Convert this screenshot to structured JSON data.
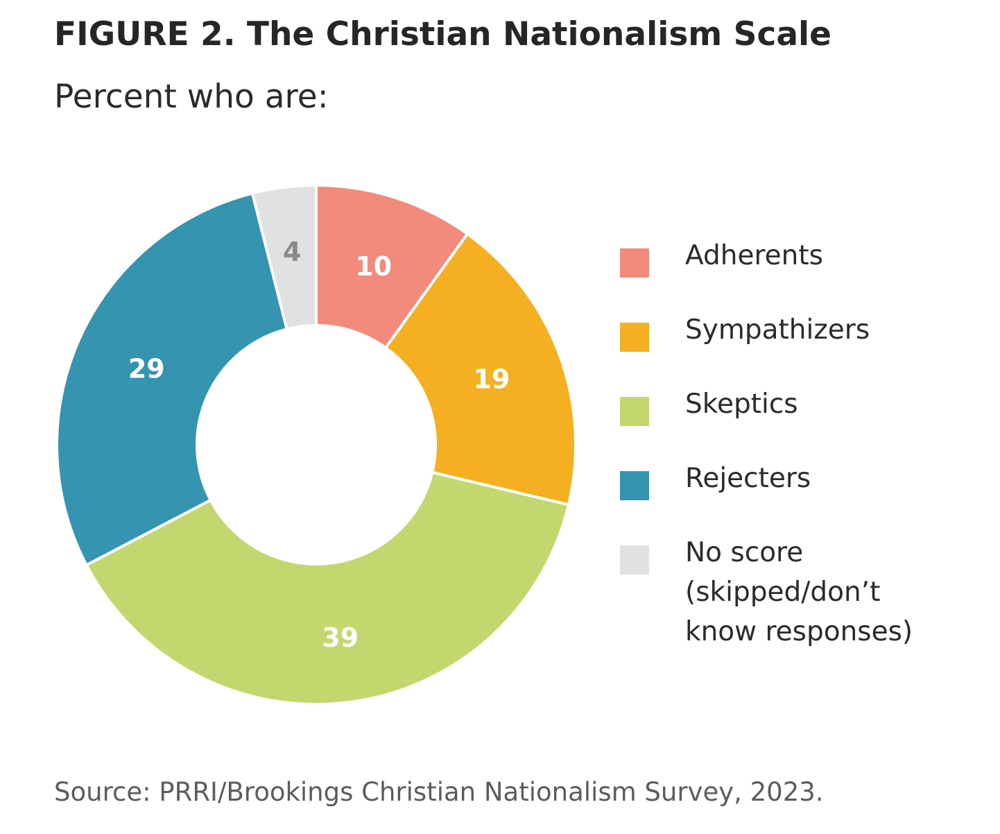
{
  "figure": {
    "title": "FIGURE 2.  The Christian Nationalism Scale",
    "subtitle": "Percent who are:",
    "source": "Source: PRRI/Brookings Christian Nationalism Survey, 2023."
  },
  "chart_data": {
    "type": "pie",
    "style": "donut",
    "title": "FIGURE 2.  The Christian Nationalism Scale",
    "subtitle": "Percent who are:",
    "legend_position": "right",
    "slices": [
      {
        "name": "Adherents",
        "value": 10,
        "label": "10",
        "color": "#f28b7b",
        "label_color": "#ffffff"
      },
      {
        "name": "Sympathizers",
        "value": 19,
        "label": "19",
        "color": "#f5b021",
        "label_color": "#ffffff"
      },
      {
        "name": "Skeptics",
        "value": 39,
        "label": "39",
        "color": "#c2d76e",
        "label_color": "#ffffff"
      },
      {
        "name": "Rejecters",
        "value": 29,
        "label": "29",
        "color": "#3594b0",
        "label_color": "#ffffff"
      },
      {
        "name": "No score",
        "value": 4,
        "label": "4",
        "color": "#e0e1e1",
        "label_color": "#8a8a8a"
      }
    ]
  },
  "legend": {
    "items": [
      {
        "lines": [
          "Adherents"
        ],
        "color": "#f28b7b"
      },
      {
        "lines": [
          "Sympathizers"
        ],
        "color": "#f5b021"
      },
      {
        "lines": [
          "Skeptics"
        ],
        "color": "#c2d76e"
      },
      {
        "lines": [
          "Rejecters"
        ],
        "color": "#3594b0"
      },
      {
        "lines": [
          "No score",
          "(skipped/don’t",
          "know responses)"
        ],
        "color": "#e0e1e1"
      }
    ]
  }
}
